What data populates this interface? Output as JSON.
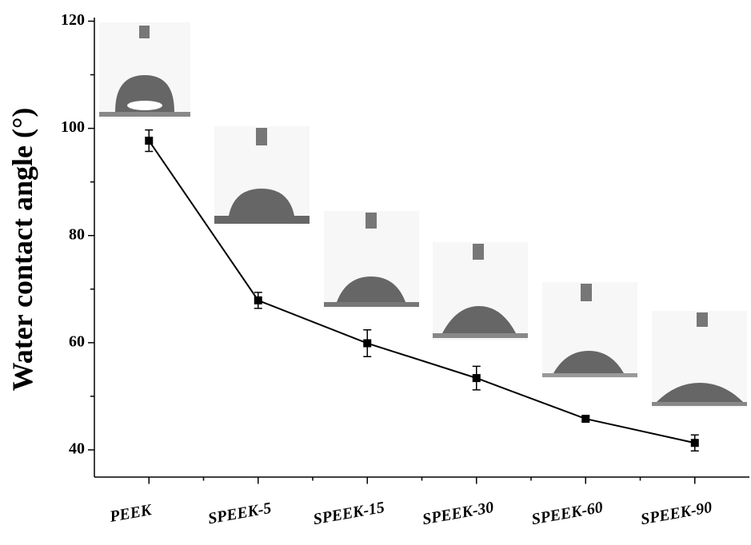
{
  "chart_data": {
    "type": "line",
    "ylabel": "Water contact angle (°)",
    "categories": [
      "PEEK",
      "SPEEK-5",
      "SPEEK-15",
      "SPEEK-30",
      "SPEEK-60",
      "SPEEK-90"
    ],
    "values": [
      97.7,
      67.9,
      59.9,
      53.4,
      45.8,
      41.3
    ],
    "errors": [
      2.0,
      1.5,
      2.5,
      2.2,
      0.5,
      1.5
    ],
    "color": "#000000",
    "ylim": [
      35,
      120
    ],
    "yticks": [
      40,
      60,
      80,
      100,
      120
    ],
    "yminorticks": [
      50,
      70,
      90,
      110
    ]
  }
}
